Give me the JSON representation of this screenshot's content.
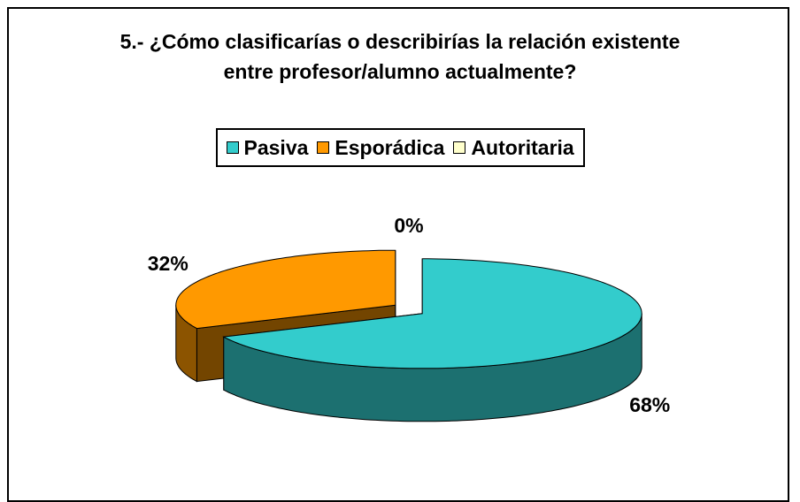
{
  "chart_data": {
    "type": "pie",
    "title": "5.- ¿Cómo clasificarías o describirías la relación existente entre profesor/alumno actualmente?",
    "categories": [
      "Pasiva",
      "Esporádica",
      "Autoritaria"
    ],
    "values": [
      68,
      32,
      0
    ],
    "value_labels": [
      "68%",
      "32%",
      "0%"
    ],
    "colors": [
      "#33CCCC",
      "#FF9900",
      "#FFFFCC"
    ],
    "legend": "top"
  }
}
